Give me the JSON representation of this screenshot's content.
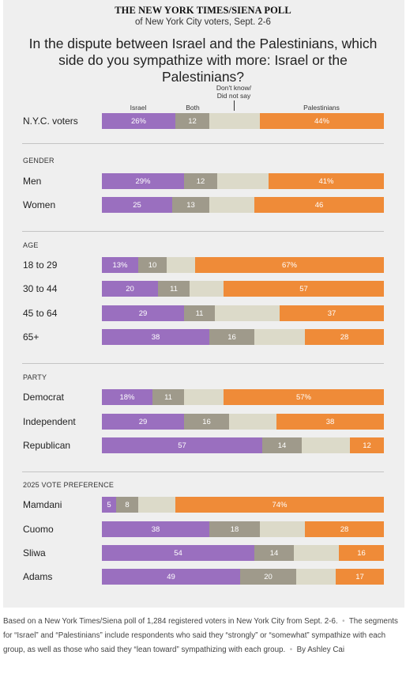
{
  "header": {
    "title": "THE NEW YORK TIMES/SIENA POLL",
    "subtitle": "of New York City voters, Sept. 2-6",
    "question": "In the dispute between Israel and the Palestinians, which side do you sympathize with more: Israel or the Palestinians?"
  },
  "column_headers": {
    "israel": "Israel",
    "both": "Both",
    "dont_know_line1": "Don't know/",
    "dont_know_line2": "Did not say",
    "palestinians": "Palestinians"
  },
  "colors": {
    "israel": "#9a6fbf",
    "both": "#9f9a8b",
    "dont_know": "#dcdac9",
    "palestinians": "#ef8b38",
    "background": "#efefef"
  },
  "chart_data": {
    "type": "bar",
    "stacked": true,
    "orientation": "horizontal",
    "series": [
      {
        "name": "Israel"
      },
      {
        "name": "Both"
      },
      {
        "name": "Don't know/Did not say"
      },
      {
        "name": "Palestinians"
      }
    ],
    "groups": [
      {
        "heading": "",
        "rows": [
          {
            "label": "N.Y.C. voters",
            "values": [
              26,
              12,
              18,
              44
            ],
            "labels": [
              "26%",
              "12",
              "",
              "44%"
            ]
          }
        ]
      },
      {
        "heading": "GENDER",
        "rows": [
          {
            "label": "Men",
            "values": [
              29,
              12,
              18,
              41
            ],
            "labels": [
              "29%",
              "12",
              "",
              "41%"
            ]
          },
          {
            "label": "Women",
            "values": [
              25,
              13,
              16,
              46
            ],
            "labels": [
              "25",
              "13",
              "",
              "46"
            ]
          }
        ]
      },
      {
        "heading": "AGE",
        "rows": [
          {
            "label": "18 to 29",
            "values": [
              13,
              10,
              10,
              67
            ],
            "labels": [
              "13%",
              "10",
              "",
              "67%"
            ]
          },
          {
            "label": "30 to 44",
            "values": [
              20,
              11,
              12,
              57
            ],
            "labels": [
              "20",
              "11",
              "",
              "57"
            ]
          },
          {
            "label": "45 to 64",
            "values": [
              29,
              11,
              23,
              37
            ],
            "labels": [
              "29",
              "11",
              "",
              "37"
            ]
          },
          {
            "label": "65+",
            "values": [
              38,
              16,
              18,
              28
            ],
            "labels": [
              "38",
              "16",
              "",
              "28"
            ]
          }
        ]
      },
      {
        "heading": "PARTY",
        "rows": [
          {
            "label": "Democrat",
            "values": [
              18,
              11,
              14,
              57
            ],
            "labels": [
              "18%",
              "11",
              "",
              "57%"
            ]
          },
          {
            "label": "Independent",
            "values": [
              29,
              16,
              17,
              38
            ],
            "labels": [
              "29",
              "16",
              "",
              "38"
            ]
          },
          {
            "label": "Republican",
            "values": [
              57,
              14,
              17,
              12
            ],
            "labels": [
              "57",
              "14",
              "",
              "12"
            ]
          }
        ]
      },
      {
        "heading": "2025 VOTE PREFERENCE",
        "rows": [
          {
            "label": "Mamdani",
            "values": [
              5,
              8,
              13,
              74
            ],
            "labels": [
              "5",
              "8",
              "",
              "74%"
            ]
          },
          {
            "label": "Cuomo",
            "values": [
              38,
              18,
              16,
              28
            ],
            "labels": [
              "38",
              "18",
              "",
              "28"
            ]
          },
          {
            "label": "Sliwa",
            "values": [
              54,
              14,
              16,
              16
            ],
            "labels": [
              "54",
              "14",
              "",
              "16"
            ]
          },
          {
            "label": "Adams",
            "values": [
              49,
              20,
              14,
              17
            ],
            "labels": [
              "49",
              "20",
              "",
              "17"
            ]
          }
        ]
      }
    ]
  },
  "footnote": {
    "line1": "Based on a New York Times/Siena poll of 1,284 registered voters in New York City from Sept. 2-6.",
    "line2": "The segments for “Israel” and “Palestinians” include respondents who said they “strongly” or “somewhat” sympathize with each group, as well as those who said they “lean toward” sympathizing with each group.",
    "byline": "By Ashley Cai"
  }
}
